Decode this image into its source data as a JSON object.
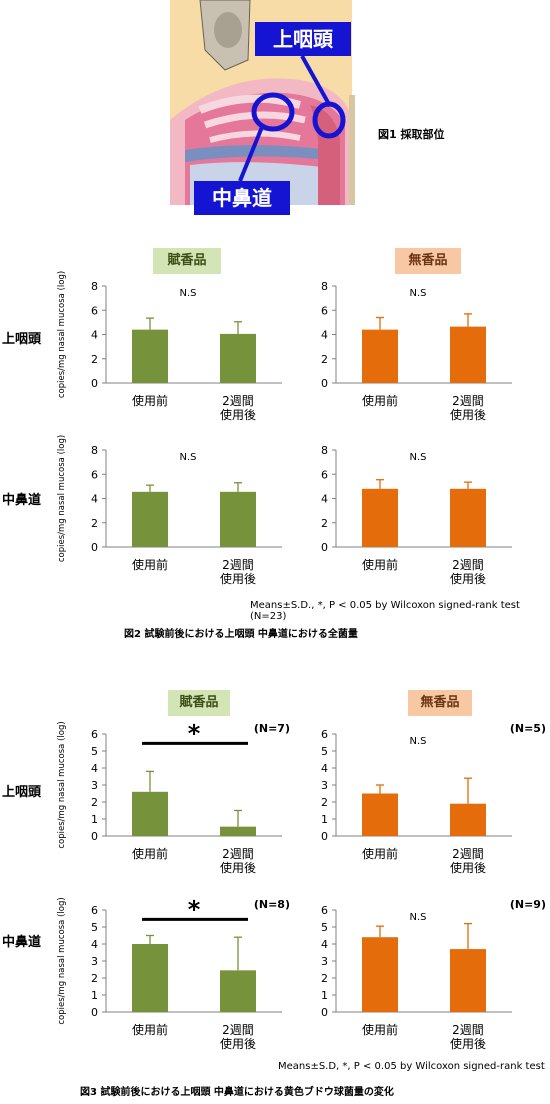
{
  "figure1": {
    "caption": "図1 採取部位",
    "callout_nasopharynx": "上咽頭",
    "callout_middle_meatus": "中鼻道"
  },
  "figure2": {
    "caption": "図2 試験前後における上咽頭 中鼻道における全菌量",
    "method_note": "Means±S.D., *, P < 0.05 by Wilcoxon signed-rank test (N=23)",
    "group_labels": [
      "賦香品",
      "無香品"
    ],
    "row_labels": [
      "上咽頭",
      "中鼻道"
    ]
  },
  "figure3": {
    "caption": "図3 試験前後における上咽頭 中鼻道における黄色ブドウ球菌量の変化",
    "method_note": "Means±S.D, *, P < 0.05 by Wilcoxon signed-rank test",
    "group_labels": [
      "賦香品",
      "無香品"
    ],
    "row_labels": [
      "上咽頭",
      "中鼻道"
    ]
  },
  "colors": {
    "fragrance": "#76933c",
    "unscented": "#e46c0a",
    "callout": "#1414d2"
  },
  "chart_data": [
    {
      "type": "bar",
      "panel": "fig2-nasopharynx-fragrance",
      "categories": [
        "使用前",
        "2週間\n使用後"
      ],
      "values": [
        4.4,
        4.05
      ],
      "errors": [
        0.95,
        1.0
      ],
      "ylim": [
        0,
        8
      ],
      "yticks": [
        0,
        2,
        4,
        6,
        8
      ],
      "ylabel": "copies/mg nasal mucosa (log)",
      "annotation": "N.S",
      "n_label": "",
      "significant": false,
      "color": "#76933c"
    },
    {
      "type": "bar",
      "panel": "fig2-nasopharynx-unscented",
      "categories": [
        "使用前",
        "2週間\n使用後"
      ],
      "values": [
        4.4,
        4.65
      ],
      "errors": [
        1.0,
        1.05
      ],
      "ylim": [
        0,
        8
      ],
      "yticks": [
        0,
        2,
        4,
        6,
        8
      ],
      "ylabel": "",
      "annotation": "N.S",
      "n_label": "",
      "significant": false,
      "color": "#e46c0a"
    },
    {
      "type": "bar",
      "panel": "fig2-middle-meatus-fragrance",
      "categories": [
        "使用前",
        "2週間\n使用後"
      ],
      "values": [
        4.55,
        4.55
      ],
      "errors": [
        0.55,
        0.75
      ],
      "ylim": [
        0,
        8
      ],
      "yticks": [
        0,
        2,
        4,
        6,
        8
      ],
      "ylabel": "copies/mg nasal mucosa (log)",
      "annotation": "N.S",
      "n_label": "",
      "significant": false,
      "color": "#76933c"
    },
    {
      "type": "bar",
      "panel": "fig2-middle-meatus-unscented",
      "categories": [
        "使用前",
        "2週間\n使用後"
      ],
      "values": [
        4.8,
        4.8
      ],
      "errors": [
        0.75,
        0.55
      ],
      "ylim": [
        0,
        8
      ],
      "yticks": [
        0,
        2,
        4,
        6,
        8
      ],
      "ylabel": "",
      "annotation": "N.S",
      "n_label": "",
      "significant": false,
      "color": "#e46c0a"
    },
    {
      "type": "bar",
      "panel": "fig3-nasopharynx-fragrance",
      "categories": [
        "使用前",
        "2週間\n使用後"
      ],
      "values": [
        2.6,
        0.55
      ],
      "errors": [
        1.2,
        0.95
      ],
      "ylim": [
        0,
        6
      ],
      "yticks": [
        0,
        1,
        2,
        3,
        4,
        5,
        6
      ],
      "ylabel": "copies/mg nasal mucosa (log)",
      "annotation": "*",
      "n_label": "(N=7)",
      "significant": true,
      "color": "#76933c"
    },
    {
      "type": "bar",
      "panel": "fig3-nasopharynx-unscented",
      "categories": [
        "使用前",
        "2週間\n使用後"
      ],
      "values": [
        2.5,
        1.9
      ],
      "errors": [
        0.5,
        1.5
      ],
      "ylim": [
        0,
        6
      ],
      "yticks": [
        0,
        1,
        2,
        3,
        4,
        5,
        6
      ],
      "ylabel": "",
      "annotation": "N.S",
      "n_label": "(N=5)",
      "significant": false,
      "color": "#e46c0a"
    },
    {
      "type": "bar",
      "panel": "fig3-middle-meatus-fragrance",
      "categories": [
        "使用前",
        "2週間\n使用後"
      ],
      "values": [
        4.0,
        2.45
      ],
      "errors": [
        0.5,
        1.95
      ],
      "ylim": [
        0,
        6
      ],
      "yticks": [
        0,
        1,
        2,
        3,
        4,
        5,
        6
      ],
      "ylabel": "copies/mg nasal mucosa (log)",
      "annotation": "*",
      "n_label": "(N=8)",
      "significant": true,
      "color": "#76933c"
    },
    {
      "type": "bar",
      "panel": "fig3-middle-meatus-unscented",
      "categories": [
        "使用前",
        "2週間\n使用後"
      ],
      "values": [
        4.4,
        3.7
      ],
      "errors": [
        0.65,
        1.5
      ],
      "ylim": [
        0,
        6
      ],
      "yticks": [
        0,
        1,
        2,
        3,
        4,
        5,
        6
      ],
      "ylabel": "",
      "annotation": "N.S",
      "n_label": "(N=9)",
      "significant": false,
      "color": "#e46c0a"
    }
  ]
}
